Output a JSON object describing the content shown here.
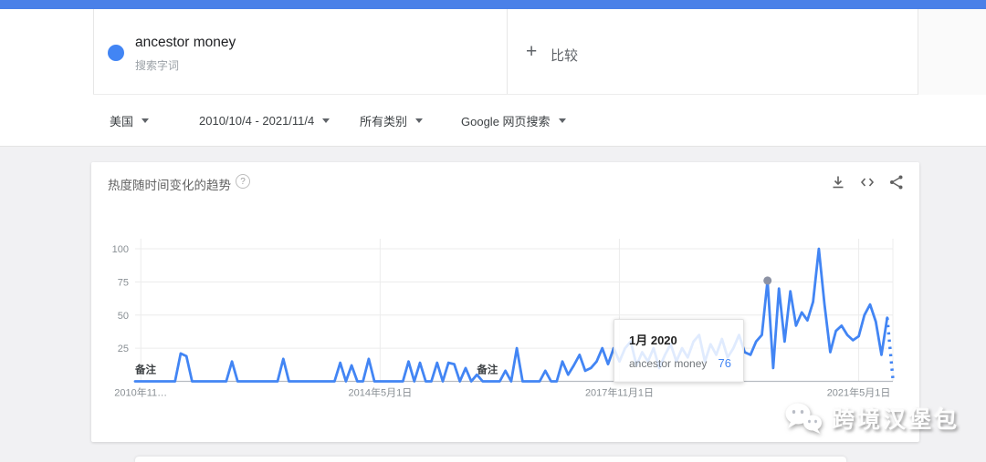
{
  "header": {
    "term_card": {
      "term": "ancestor money",
      "type_label": "搜索字词",
      "dot_color": "#4285f4"
    },
    "compare": {
      "plus": "+",
      "label": "比较"
    }
  },
  "filters": [
    {
      "label": "美国"
    },
    {
      "label": "2010/10/4 - 2021/11/4"
    },
    {
      "label": "所有类别"
    },
    {
      "label": "Google 网页搜索"
    }
  ],
  "trend_card": {
    "title": "热度随时间变化的趋势",
    "help_glyph": "?",
    "actions": [
      {
        "icon": "download-icon"
      },
      {
        "icon": "embed-icon"
      },
      {
        "icon": "share-icon"
      }
    ]
  },
  "tooltip": {
    "date": "1月 2020",
    "term": "ancestor money",
    "value": "76",
    "value_color": "#4285f4"
  },
  "watermark": {
    "text": "跨境汉堡包",
    "icon": "wechat-icon"
  },
  "chart_data": {
    "type": "line",
    "title": "热度随时间变化的趋势",
    "line_color": "#4285f4",
    "grid": true,
    "ylim": [
      0,
      100
    ],
    "y_ticks": [
      100,
      75,
      50,
      25
    ],
    "x_ticks": [
      {
        "label": "2010年11…",
        "month": 1
      },
      {
        "label": "2014年5月1日",
        "month": 43
      },
      {
        "label": "2017年11月1日",
        "month": 85
      },
      {
        "label": "2021年5月1日",
        "month": 127
      }
    ],
    "notes": [
      {
        "label": "备注",
        "month": 0
      },
      {
        "label": "备注",
        "month": 60
      }
    ],
    "hover_point": {
      "month": 111,
      "date": "1月 2020",
      "value": 76
    },
    "partial_from_month": 132,
    "series": [
      {
        "name": "ancestor money",
        "points": [
          [
            "2010-10",
            0
          ],
          [
            "2010-11",
            0
          ],
          [
            "2010-12",
            0
          ],
          [
            "2011-01",
            0
          ],
          [
            "2011-02",
            0
          ],
          [
            "2011-03",
            0
          ],
          [
            "2011-04",
            0
          ],
          [
            "2011-05",
            0
          ],
          [
            "2011-06",
            21
          ],
          [
            "2011-07",
            19
          ],
          [
            "2011-08",
            0
          ],
          [
            "2011-09",
            0
          ],
          [
            "2011-10",
            0
          ],
          [
            "2011-11",
            0
          ],
          [
            "2011-12",
            0
          ],
          [
            "2012-01",
            0
          ],
          [
            "2012-02",
            0
          ],
          [
            "2012-03",
            15
          ],
          [
            "2012-04",
            0
          ],
          [
            "2012-05",
            0
          ],
          [
            "2012-06",
            0
          ],
          [
            "2012-07",
            0
          ],
          [
            "2012-08",
            0
          ],
          [
            "2012-09",
            0
          ],
          [
            "2012-10",
            0
          ],
          [
            "2012-11",
            0
          ],
          [
            "2012-12",
            17
          ],
          [
            "2013-01",
            0
          ],
          [
            "2013-02",
            0
          ],
          [
            "2013-03",
            0
          ],
          [
            "2013-04",
            0
          ],
          [
            "2013-05",
            0
          ],
          [
            "2013-06",
            0
          ],
          [
            "2013-07",
            0
          ],
          [
            "2013-08",
            0
          ],
          [
            "2013-09",
            0
          ],
          [
            "2013-10",
            14
          ],
          [
            "2013-11",
            0
          ],
          [
            "2013-12",
            12
          ],
          [
            "2014-01",
            0
          ],
          [
            "2014-02",
            0
          ],
          [
            "2014-03",
            17
          ],
          [
            "2014-04",
            0
          ],
          [
            "2014-05",
            0
          ],
          [
            "2014-06",
            0
          ],
          [
            "2014-07",
            0
          ],
          [
            "2014-08",
            0
          ],
          [
            "2014-09",
            0
          ],
          [
            "2014-10",
            15
          ],
          [
            "2014-11",
            0
          ],
          [
            "2014-12",
            14
          ],
          [
            "2015-01",
            0
          ],
          [
            "2015-02",
            0
          ],
          [
            "2015-03",
            14
          ],
          [
            "2015-04",
            0
          ],
          [
            "2015-05",
            14
          ],
          [
            "2015-06",
            13
          ],
          [
            "2015-07",
            0
          ],
          [
            "2015-08",
            10
          ],
          [
            "2015-09",
            0
          ],
          [
            "2015-10",
            5
          ],
          [
            "2015-11",
            0
          ],
          [
            "2015-12",
            0
          ],
          [
            "2016-01",
            0
          ],
          [
            "2016-02",
            0
          ],
          [
            "2016-03",
            8
          ],
          [
            "2016-04",
            0
          ],
          [
            "2016-05",
            25
          ],
          [
            "2016-06",
            0
          ],
          [
            "2016-07",
            0
          ],
          [
            "2016-08",
            0
          ],
          [
            "2016-09",
            0
          ],
          [
            "2016-10",
            8
          ],
          [
            "2016-11",
            0
          ],
          [
            "2016-12",
            0
          ],
          [
            "2017-01",
            15
          ],
          [
            "2017-02",
            5
          ],
          [
            "2017-03",
            12
          ],
          [
            "2017-04",
            20
          ],
          [
            "2017-05",
            8
          ],
          [
            "2017-06",
            10
          ],
          [
            "2017-07",
            15
          ],
          [
            "2017-08",
            25
          ],
          [
            "2017-09",
            13
          ],
          [
            "2017-10",
            25
          ],
          [
            "2017-11",
            15
          ],
          [
            "2017-12",
            25
          ],
          [
            "2018-01",
            30
          ],
          [
            "2018-02",
            12
          ],
          [
            "2018-03",
            22
          ],
          [
            "2018-04",
            15
          ],
          [
            "2018-05",
            25
          ],
          [
            "2018-06",
            10
          ],
          [
            "2018-07",
            20
          ],
          [
            "2018-08",
            28
          ],
          [
            "2018-09",
            15
          ],
          [
            "2018-10",
            25
          ],
          [
            "2018-11",
            18
          ],
          [
            "2018-12",
            30
          ],
          [
            "2019-01",
            35
          ],
          [
            "2019-02",
            15
          ],
          [
            "2019-03",
            28
          ],
          [
            "2019-04",
            20
          ],
          [
            "2019-05",
            32
          ],
          [
            "2019-06",
            18
          ],
          [
            "2019-07",
            25
          ],
          [
            "2019-08",
            35
          ],
          [
            "2019-09",
            22
          ],
          [
            "2019-10",
            20
          ],
          [
            "2019-11",
            30
          ],
          [
            "2019-12",
            35
          ],
          [
            "2020-01",
            76
          ],
          [
            "2020-02",
            10
          ],
          [
            "2020-03",
            70
          ],
          [
            "2020-04",
            30
          ],
          [
            "2020-05",
            68
          ],
          [
            "2020-06",
            42
          ],
          [
            "2020-07",
            52
          ],
          [
            "2020-08",
            46
          ],
          [
            "2020-09",
            60
          ],
          [
            "2020-10",
            100
          ],
          [
            "2020-11",
            58
          ],
          [
            "2020-12",
            22
          ],
          [
            "2021-01",
            38
          ],
          [
            "2021-02",
            42
          ],
          [
            "2021-03",
            35
          ],
          [
            "2021-04",
            31
          ],
          [
            "2021-05",
            34
          ],
          [
            "2021-06",
            50
          ],
          [
            "2021-07",
            58
          ],
          [
            "2021-08",
            45
          ],
          [
            "2021-09",
            20
          ],
          [
            "2021-10",
            48
          ],
          [
            "2021-11",
            2
          ]
        ]
      }
    ]
  }
}
